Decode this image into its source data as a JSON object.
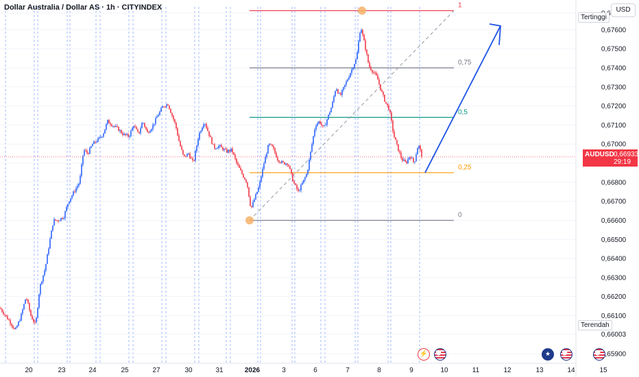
{
  "header": {
    "title": "Dollar Australia / Dollar AS · 1h · CITYINDEX",
    "currency_button": "USD"
  },
  "tags": {
    "high": "Tertinggi",
    "low": "Terendah"
  },
  "price_label": {
    "symbol": "AUDUSD",
    "value": "0,66933",
    "countdown": "29:19"
  },
  "chart_data": {
    "type": "candlestick",
    "symbol": "AUDUSD",
    "timeframe": "1h",
    "ylim": [
      0.6585,
      0.6772
    ],
    "y_ticks": [
      "0,65900",
      "0,66003",
      "0,66100",
      "0,66200",
      "0,66300",
      "0,66400",
      "0,66500",
      "0,66600",
      "0,66700",
      "0,66800",
      "0,66900",
      "0,67000",
      "0,67100",
      "0,67200",
      "0,67300",
      "0,67400",
      "0,67500",
      "0,67600",
      "0,67687"
    ],
    "x_ticks": [
      "20",
      "23",
      "24",
      "25",
      "27",
      "30",
      "31",
      "2026",
      "3",
      "6",
      "7",
      "8",
      "9",
      "10",
      "11",
      "12",
      "13",
      "14",
      "15"
    ],
    "current_price": 0.66933,
    "session_high": 0.67687,
    "session_low": 0.66003,
    "fibonacci": [
      {
        "level": "1",
        "price": 0.677,
        "color": "#f23645"
      },
      {
        "level": "0,75",
        "price": 0.674,
        "color": "#787b86"
      },
      {
        "level": "0,5",
        "price": 0.6714,
        "color": "#089981"
      },
      {
        "level": "0,25",
        "price": 0.6685,
        "color": "#ff9800"
      },
      {
        "level": "0",
        "price": 0.666,
        "color": "#787b86"
      }
    ],
    "colors": {
      "up": "#2962ff",
      "down": "#f23645",
      "current_line": "#f23645",
      "arrow": "#1e53e5"
    },
    "price_path": [
      [
        0,
        0.6614
      ],
      [
        8,
        0.661
      ],
      [
        16,
        0.6606
      ],
      [
        22,
        0.6602
      ],
      [
        30,
        0.6609
      ],
      [
        38,
        0.662
      ],
      [
        45,
        0.661
      ],
      [
        52,
        0.6605
      ],
      [
        58,
        0.6625
      ],
      [
        66,
        0.6635
      ],
      [
        72,
        0.6648
      ],
      [
        78,
        0.666
      ],
      [
        85,
        0.666
      ],
      [
        93,
        0.6662
      ],
      [
        100,
        0.667
      ],
      [
        108,
        0.6675
      ],
      [
        116,
        0.668
      ],
      [
        122,
        0.6697
      ],
      [
        128,
        0.6695
      ],
      [
        135,
        0.67
      ],
      [
        142,
        0.6702
      ],
      [
        150,
        0.6705
      ],
      [
        157,
        0.6712
      ],
      [
        164,
        0.671
      ],
      [
        172,
        0.6708
      ],
      [
        180,
        0.6705
      ],
      [
        188,
        0.6704
      ],
      [
        195,
        0.671
      ],
      [
        202,
        0.6705
      ],
      [
        208,
        0.6712
      ],
      [
        215,
        0.6706
      ],
      [
        222,
        0.6709
      ],
      [
        230,
        0.6715
      ],
      [
        238,
        0.672
      ],
      [
        245,
        0.6721
      ],
      [
        250,
        0.6716
      ],
      [
        256,
        0.671
      ],
      [
        262,
        0.67
      ],
      [
        268,
        0.6693
      ],
      [
        275,
        0.6695
      ],
      [
        282,
        0.669
      ],
      [
        290,
        0.6705
      ],
      [
        298,
        0.6712
      ],
      [
        305,
        0.6705
      ],
      [
        312,
        0.6698
      ],
      [
        320,
        0.6699
      ],
      [
        330,
        0.6696
      ],
      [
        338,
        0.6697
      ],
      [
        345,
        0.669
      ],
      [
        352,
        0.6685
      ],
      [
        360,
        0.668
      ],
      [
        366,
        0.6666
      ],
      [
        372,
        0.6672
      ],
      [
        378,
        0.6678
      ],
      [
        385,
        0.669
      ],
      [
        392,
        0.67
      ],
      [
        398,
        0.6698
      ],
      [
        405,
        0.6692
      ],
      [
        412,
        0.669
      ],
      [
        420,
        0.669
      ],
      [
        428,
        0.668
      ],
      [
        435,
        0.6675
      ],
      [
        442,
        0.668
      ],
      [
        448,
        0.6685
      ],
      [
        455,
        0.67
      ],
      [
        460,
        0.671
      ],
      [
        466,
        0.6712
      ],
      [
        472,
        0.6708
      ],
      [
        478,
        0.6714
      ],
      [
        484,
        0.672
      ],
      [
        490,
        0.673
      ],
      [
        496,
        0.6725
      ],
      [
        502,
        0.673
      ],
      [
        508,
        0.6735
      ],
      [
        514,
        0.674
      ],
      [
        520,
        0.6745
      ],
      [
        526,
        0.6762
      ],
      [
        532,
        0.6752
      ],
      [
        538,
        0.6741
      ],
      [
        544,
        0.6738
      ],
      [
        550,
        0.6735
      ],
      [
        556,
        0.6728
      ],
      [
        562,
        0.6722
      ],
      [
        568,
        0.6718
      ],
      [
        574,
        0.6705
      ],
      [
        580,
        0.6698
      ],
      [
        586,
        0.6692
      ],
      [
        592,
        0.669
      ],
      [
        598,
        0.6694
      ],
      [
        604,
        0.669
      ],
      [
        610,
        0.67
      ],
      [
        616,
        0.6693
      ]
    ]
  }
}
